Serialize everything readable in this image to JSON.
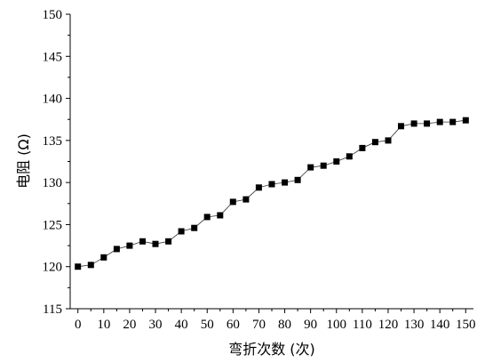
{
  "chart_data": {
    "type": "line",
    "title": "",
    "xlabel": "弯折次数 (次)",
    "ylabel": "电阻 (Ω)",
    "xlim": [
      -3,
      153
    ],
    "ylim": [
      115,
      150
    ],
    "xticks": [
      0,
      10,
      20,
      30,
      40,
      50,
      60,
      70,
      80,
      90,
      100,
      110,
      120,
      130,
      140,
      150
    ],
    "yticks": [
      115,
      120,
      125,
      130,
      135,
      140,
      145,
      150
    ],
    "marker": "square",
    "grid": false,
    "legend": "none",
    "series": [
      {
        "x": [
          0,
          5,
          10,
          15,
          20,
          25,
          30,
          35,
          40,
          45,
          50,
          55,
          60,
          65,
          70,
          75,
          80,
          85,
          90,
          95,
          100,
          105,
          110,
          115,
          120,
          125,
          130,
          135,
          140,
          145,
          150
        ],
        "y": [
          120.0,
          120.2,
          121.1,
          122.1,
          122.5,
          123.0,
          122.7,
          123.0,
          124.2,
          124.6,
          125.9,
          126.1,
          127.7,
          128.0,
          129.4,
          129.8,
          130.0,
          130.3,
          131.8,
          132.0,
          132.5,
          133.1,
          134.1,
          134.8,
          135.0,
          136.7,
          137.0,
          137.0,
          137.2,
          137.2,
          137.4
        ]
      }
    ]
  }
}
